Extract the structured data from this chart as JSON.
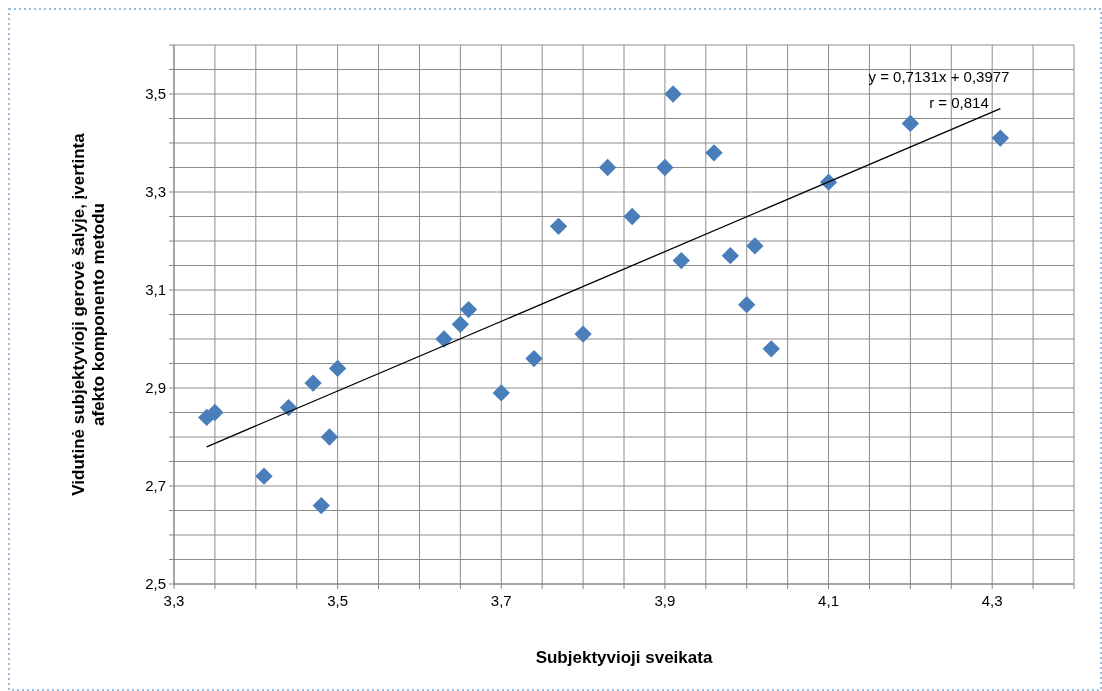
{
  "chart_data": {
    "type": "scatter",
    "xlabel": "Subjektyvioji sveikata",
    "ylabel": "Vidutinė subjektyvioji gerovė šalyje, įvertinta afekto komponento metodu",
    "xlim": [
      3.3,
      4.4
    ],
    "ylim": [
      2.5,
      3.6
    ],
    "xticks": [
      {
        "value": 3.3,
        "label": "3,3"
      },
      {
        "value": 3.35,
        "label": null
      },
      {
        "value": 3.4,
        "label": null
      },
      {
        "value": 3.45,
        "label": null
      },
      {
        "value": 3.5,
        "label": "3,5"
      },
      {
        "value": 3.55,
        "label": null
      },
      {
        "value": 3.6,
        "label": null
      },
      {
        "value": 3.65,
        "label": null
      },
      {
        "value": 3.7,
        "label": "3,7"
      },
      {
        "value": 3.75,
        "label": null
      },
      {
        "value": 3.8,
        "label": null
      },
      {
        "value": 3.85,
        "label": null
      },
      {
        "value": 3.9,
        "label": "3,9"
      },
      {
        "value": 3.95,
        "label": null
      },
      {
        "value": 4.0,
        "label": null
      },
      {
        "value": 4.05,
        "label": null
      },
      {
        "value": 4.1,
        "label": "4,1"
      },
      {
        "value": 4.15,
        "label": null
      },
      {
        "value": 4.2,
        "label": null
      },
      {
        "value": 4.25,
        "label": null
      },
      {
        "value": 4.3,
        "label": "4,3"
      },
      {
        "value": 4.35,
        "label": null
      },
      {
        "value": 4.4,
        "label": null
      }
    ],
    "yticks": [
      {
        "value": 2.5,
        "label": "2,5"
      },
      {
        "value": 2.55,
        "label": null
      },
      {
        "value": 2.6,
        "label": null
      },
      {
        "value": 2.65,
        "label": null
      },
      {
        "value": 2.7,
        "label": "2,7"
      },
      {
        "value": 2.75,
        "label": null
      },
      {
        "value": 2.8,
        "label": null
      },
      {
        "value": 2.85,
        "label": null
      },
      {
        "value": 2.9,
        "label": "2,9"
      },
      {
        "value": 2.95,
        "label": null
      },
      {
        "value": 3.0,
        "label": null
      },
      {
        "value": 3.05,
        "label": null
      },
      {
        "value": 3.1,
        "label": "3,1"
      },
      {
        "value": 3.15,
        "label": null
      },
      {
        "value": 3.2,
        "label": null
      },
      {
        "value": 3.25,
        "label": null
      },
      {
        "value": 3.3,
        "label": "3,3"
      },
      {
        "value": 3.35,
        "label": null
      },
      {
        "value": 3.4,
        "label": null
      },
      {
        "value": 3.45,
        "label": null
      },
      {
        "value": 3.5,
        "label": "3,5"
      },
      {
        "value": 3.55,
        "label": null
      },
      {
        "value": 3.6,
        "label": null
      }
    ],
    "grid": true,
    "annotations": [
      "y = 0,7131x + 0,3977",
      "r = 0,814"
    ],
    "series": [
      {
        "marker": "diamond",
        "color": "#4a7ebb",
        "x": [
          3.34,
          3.35,
          3.41,
          3.44,
          3.47,
          3.49,
          3.48,
          3.5,
          3.63,
          3.65,
          3.66,
          3.7,
          3.74,
          3.77,
          3.8,
          3.83,
          3.86,
          3.9,
          3.91,
          3.92,
          3.96,
          3.98,
          4.0,
          4.01,
          4.03,
          4.1,
          4.2,
          4.31
        ],
        "values": [
          2.84,
          2.85,
          2.72,
          2.86,
          2.91,
          2.8,
          2.66,
          2.94,
          3.0,
          3.03,
          3.06,
          2.89,
          2.96,
          3.23,
          3.01,
          3.35,
          3.25,
          3.35,
          3.5,
          3.16,
          3.38,
          3.17,
          3.07,
          3.19,
          2.98,
          3.32,
          3.44,
          3.41
        ]
      },
      {
        "type": "line",
        "marker": "none",
        "color": "#000000",
        "x": [
          3.34,
          4.31
        ],
        "values": [
          2.78,
          3.47
        ]
      }
    ]
  }
}
